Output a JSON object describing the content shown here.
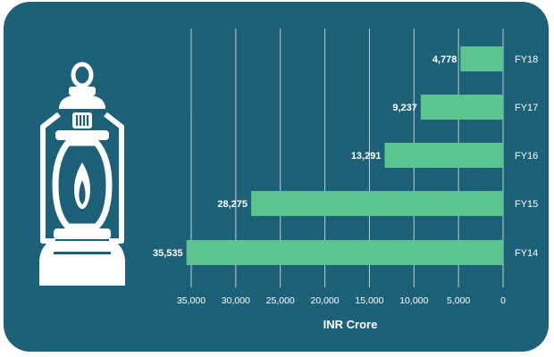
{
  "chart_data": {
    "type": "bar",
    "orientation": "horizontal",
    "categories": [
      "FY18",
      "FY17",
      "FY16",
      "FY15",
      "FY14"
    ],
    "values": [
      4778,
      9237,
      13291,
      28275,
      35535
    ],
    "value_labels": [
      "4,778",
      "9,237",
      "13,291",
      "28,275",
      "35,535"
    ],
    "xlabel": "INR Crore",
    "xlim": [
      0,
      37500
    ],
    "x_axis_reversed": true,
    "category_axis_side": "right",
    "x_ticks": [
      35000,
      30000,
      25000,
      20000,
      15000,
      10000,
      5000,
      0
    ],
    "x_tick_labels": [
      "35,000",
      "30,000",
      "25,000",
      "20,000",
      "15,000",
      "10,000",
      "5,000",
      "0"
    ],
    "grid": true
  },
  "colors": {
    "background": "#1c6178",
    "bar": "#5cc58f",
    "gridline": "#d7e6ec",
    "text": "#ffffff",
    "icon": "#ffffff"
  },
  "icon": "lantern-icon"
}
